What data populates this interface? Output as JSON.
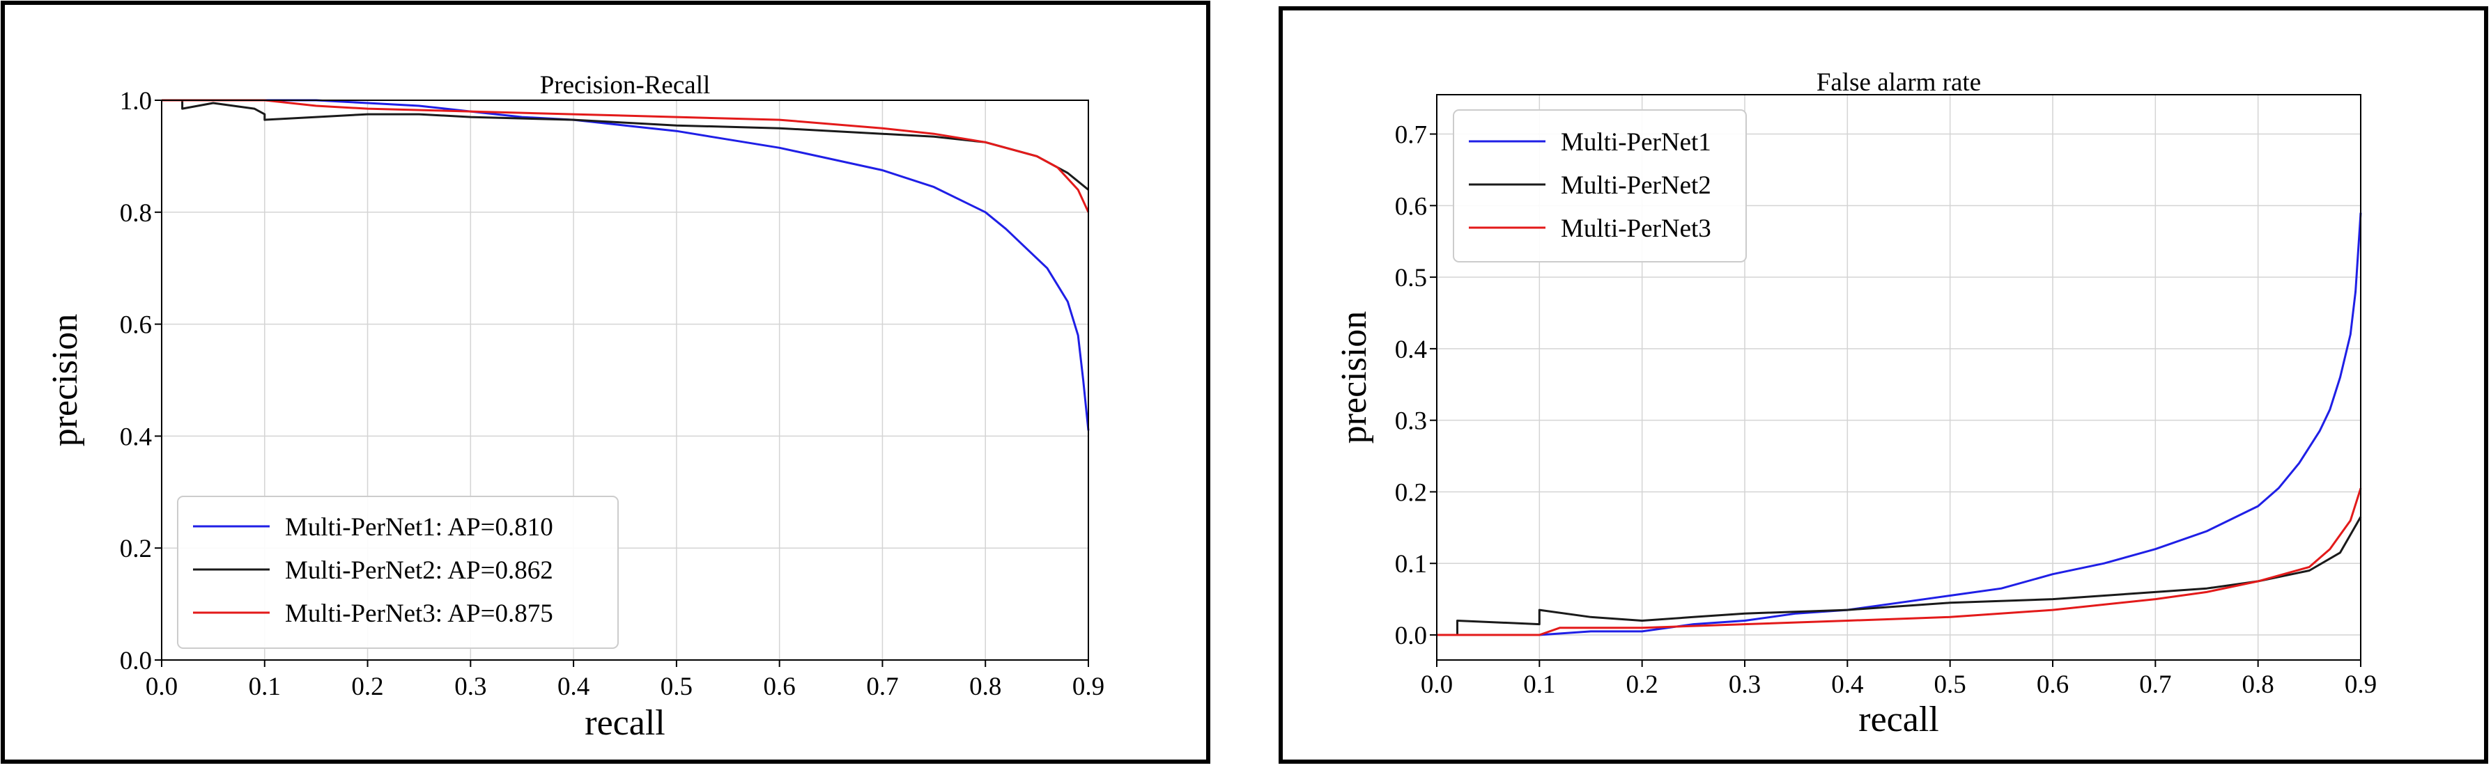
{
  "figure": {
    "colors": {
      "series1": "#1f1fe6",
      "series2": "#1a1a1a",
      "series3": "#e31a1a",
      "grid": "#d4d4d4",
      "frame": "#000000"
    }
  },
  "chart_data": [
    {
      "type": "line",
      "title": "Precision-Recall",
      "xlabel": "recall",
      "ylabel": "precision",
      "xlim": [
        0.0,
        0.9
      ],
      "ylim": [
        0.0,
        1.0
      ],
      "xticks": [
        0.0,
        0.1,
        0.2,
        0.3,
        0.4,
        0.5,
        0.6,
        0.7,
        0.8,
        0.9
      ],
      "yticks": [
        0.0,
        0.2,
        0.4,
        0.6,
        0.8,
        1.0
      ],
      "xtick_labels": [
        "0.0",
        "0.1",
        "0.2",
        "0.3",
        "0.4",
        "0.5",
        "0.6",
        "0.7",
        "0.8",
        "0.9"
      ],
      "ytick_labels": [
        "0.0",
        "0.2",
        "0.4",
        "0.6",
        "0.8",
        "1.0"
      ],
      "grid": true,
      "legend_position": "bottom-left",
      "series": [
        {
          "name": "Multi-PerNet1: AP=0.810",
          "color": "#1f1fe6",
          "x": [
            0.0,
            0.05,
            0.1,
            0.15,
            0.2,
            0.25,
            0.3,
            0.35,
            0.4,
            0.45,
            0.5,
            0.55,
            0.6,
            0.65,
            0.7,
            0.75,
            0.8,
            0.82,
            0.84,
            0.86,
            0.87,
            0.88,
            0.89,
            0.895,
            0.9
          ],
          "y": [
            1.0,
            1.0,
            1.0,
            1.0,
            0.995,
            0.99,
            0.98,
            0.97,
            0.965,
            0.955,
            0.945,
            0.93,
            0.915,
            0.895,
            0.875,
            0.845,
            0.8,
            0.77,
            0.735,
            0.7,
            0.67,
            0.64,
            0.58,
            0.5,
            0.41
          ]
        },
        {
          "name": "Multi-PerNet2: AP=0.862",
          "color": "#1a1a1a",
          "x": [
            0.0,
            0.02,
            0.02,
            0.05,
            0.09,
            0.1,
            0.1,
            0.15,
            0.2,
            0.25,
            0.3,
            0.4,
            0.5,
            0.6,
            0.7,
            0.75,
            0.8,
            0.85,
            0.88,
            0.9
          ],
          "y": [
            1.0,
            1.0,
            0.985,
            0.995,
            0.985,
            0.975,
            0.965,
            0.97,
            0.975,
            0.975,
            0.97,
            0.965,
            0.955,
            0.95,
            0.94,
            0.935,
            0.925,
            0.9,
            0.87,
            0.84
          ]
        },
        {
          "name": "Multi-PerNet3: AP=0.875",
          "color": "#e31a1a",
          "x": [
            0.0,
            0.05,
            0.1,
            0.15,
            0.2,
            0.3,
            0.4,
            0.5,
            0.6,
            0.7,
            0.75,
            0.8,
            0.85,
            0.87,
            0.89,
            0.9
          ],
          "y": [
            1.0,
            1.0,
            1.0,
            0.99,
            0.985,
            0.98,
            0.975,
            0.97,
            0.965,
            0.95,
            0.94,
            0.925,
            0.9,
            0.88,
            0.84,
            0.8
          ]
        }
      ]
    },
    {
      "type": "line",
      "title": "False alarm rate",
      "xlabel": "recall",
      "ylabel": "precision",
      "xlim": [
        0.0,
        0.9
      ],
      "ylim": [
        -0.035,
        0.755
      ],
      "xticks": [
        0.0,
        0.1,
        0.2,
        0.3,
        0.4,
        0.5,
        0.6,
        0.7,
        0.8,
        0.9
      ],
      "yticks": [
        0.0,
        0.1,
        0.2,
        0.3,
        0.4,
        0.5,
        0.6,
        0.7
      ],
      "xtick_labels": [
        "0.0",
        "0.1",
        "0.2",
        "0.3",
        "0.4",
        "0.5",
        "0.6",
        "0.7",
        "0.8",
        "0.9"
      ],
      "ytick_labels": [
        "0.0",
        "0.1",
        "0.2",
        "0.3",
        "0.4",
        "0.5",
        "0.6",
        "0.7"
      ],
      "grid": true,
      "legend_position": "top-left",
      "series": [
        {
          "name": "Multi-PerNet1",
          "color": "#1f1fe6",
          "x": [
            0.0,
            0.1,
            0.15,
            0.2,
            0.25,
            0.3,
            0.35,
            0.4,
            0.45,
            0.5,
            0.55,
            0.6,
            0.65,
            0.7,
            0.75,
            0.8,
            0.82,
            0.84,
            0.86,
            0.87,
            0.88,
            0.89,
            0.895,
            0.9
          ],
          "y": [
            0.0,
            0.0,
            0.005,
            0.005,
            0.015,
            0.02,
            0.03,
            0.035,
            0.045,
            0.055,
            0.065,
            0.085,
            0.1,
            0.12,
            0.145,
            0.18,
            0.205,
            0.24,
            0.285,
            0.315,
            0.36,
            0.42,
            0.48,
            0.59
          ]
        },
        {
          "name": "Multi-PerNet2",
          "color": "#1a1a1a",
          "x": [
            0.0,
            0.02,
            0.02,
            0.1,
            0.1,
            0.15,
            0.2,
            0.25,
            0.3,
            0.4,
            0.5,
            0.6,
            0.7,
            0.75,
            0.8,
            0.85,
            0.88,
            0.9
          ],
          "y": [
            0.0,
            0.0,
            0.02,
            0.015,
            0.035,
            0.025,
            0.02,
            0.025,
            0.03,
            0.035,
            0.045,
            0.05,
            0.06,
            0.065,
            0.075,
            0.09,
            0.115,
            0.165
          ]
        },
        {
          "name": "Multi-PerNet3",
          "color": "#e31a1a",
          "x": [
            0.0,
            0.1,
            0.12,
            0.2,
            0.3,
            0.4,
            0.5,
            0.6,
            0.7,
            0.75,
            0.8,
            0.85,
            0.87,
            0.89,
            0.9
          ],
          "y": [
            0.0,
            0.0,
            0.01,
            0.01,
            0.015,
            0.02,
            0.025,
            0.035,
            0.05,
            0.06,
            0.075,
            0.095,
            0.12,
            0.16,
            0.205
          ]
        }
      ]
    }
  ]
}
